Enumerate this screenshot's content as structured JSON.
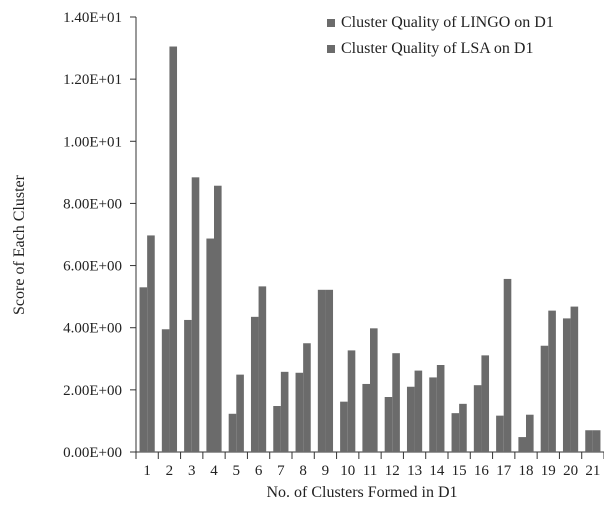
{
  "chart_data": {
    "type": "bar",
    "title": "",
    "xlabel": "No. of Clusters Formed in D1",
    "ylabel": "Score of Each Cluster",
    "ylim": [
      0,
      14
    ],
    "y_ticks": [
      {
        "value": 0,
        "label": "0.00E+00"
      },
      {
        "value": 2,
        "label": "2.00E+00"
      },
      {
        "value": 4,
        "label": "4.00E+00"
      },
      {
        "value": 6,
        "label": "6.00E+00"
      },
      {
        "value": 8,
        "label": "8.00E+00"
      },
      {
        "value": 10,
        "label": "1.00E+01"
      },
      {
        "value": 12,
        "label": "1.20E+01"
      },
      {
        "value": 14,
        "label": "1.40E+01"
      }
    ],
    "categories": [
      "1",
      "2",
      "3",
      "4",
      "5",
      "6",
      "7",
      "8",
      "9",
      "10",
      "11",
      "12",
      "13",
      "14",
      "15",
      "16",
      "17",
      "18",
      "19",
      "20",
      "21"
    ],
    "series": [
      {
        "name": "Cluster Quality of LINGO on D1",
        "color": "#6b6b6b",
        "values": [
          5.3,
          3.95,
          4.25,
          6.87,
          1.23,
          4.35,
          1.48,
          2.55,
          5.22,
          1.62,
          2.19,
          1.77,
          2.1,
          2.4,
          1.25,
          2.15,
          1.17,
          0.48,
          3.42,
          4.3,
          0.7
        ]
      },
      {
        "name": "Cluster Quality of LSA on D1",
        "color": "#6b6b6b",
        "values": [
          6.97,
          13.05,
          8.84,
          8.57,
          2.49,
          5.33,
          2.58,
          3.5,
          5.22,
          3.27,
          3.98,
          3.18,
          2.62,
          2.8,
          1.55,
          3.11,
          5.57,
          1.2,
          4.55,
          4.68,
          0.7
        ]
      }
    ],
    "legend_position": "top-right",
    "grid": false
  }
}
